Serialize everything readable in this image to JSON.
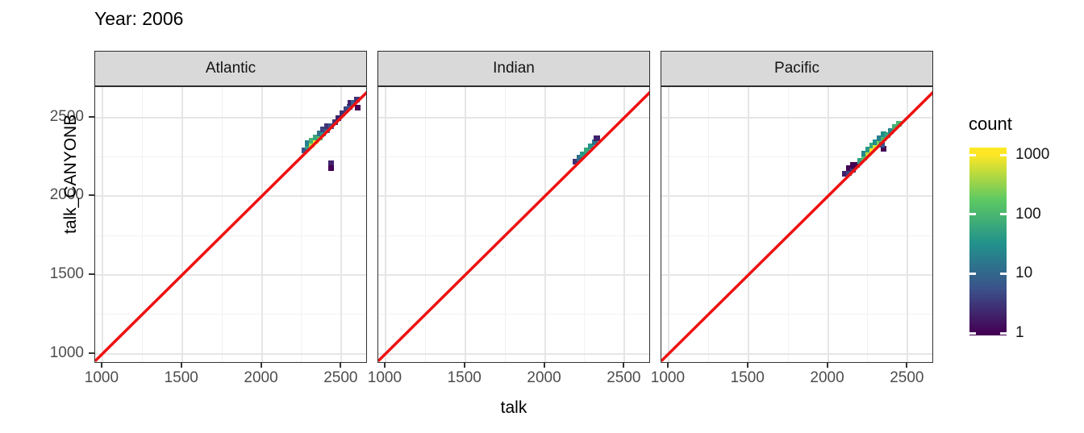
{
  "chart_data": {
    "type": "heatmap",
    "subtype": "bin2d-faceted-scatter",
    "title": "Year: 2006",
    "xlabel": "talk",
    "ylabel": "talk_CANYONB",
    "xlim": [
      955,
      2665
    ],
    "ylim": [
      938,
      2692
    ],
    "x_ticks": [
      1000,
      1500,
      2000,
      2500
    ],
    "y_ticks": [
      1000,
      1500,
      2000,
      2500
    ],
    "minor_gridlines": [
      1250,
      1750,
      2250
    ],
    "grid": true,
    "bin_size": 36,
    "facets": [
      {
        "label": "Atlantic",
        "bins": [
          [
            2268,
            2290,
            6
          ],
          [
            2290,
            2314,
            50
          ],
          [
            2290,
            2338,
            20
          ],
          [
            2314,
            2326,
            500
          ],
          [
            2314,
            2350,
            90
          ],
          [
            2338,
            2350,
            1000
          ],
          [
            2338,
            2374,
            60
          ],
          [
            2362,
            2372,
            150
          ],
          [
            2362,
            2398,
            12
          ],
          [
            2386,
            2396,
            35
          ],
          [
            2386,
            2422,
            4
          ],
          [
            2410,
            2420,
            12
          ],
          [
            2412,
            2446,
            3
          ],
          [
            2436,
            2446,
            6
          ],
          [
            2458,
            2470,
            3
          ],
          [
            2482,
            2494,
            2
          ],
          [
            2506,
            2528,
            3
          ],
          [
            2530,
            2552,
            4
          ],
          [
            2552,
            2566,
            6
          ],
          [
            2554,
            2592,
            2
          ],
          [
            2576,
            2590,
            8
          ],
          [
            2598,
            2614,
            3
          ],
          [
            2600,
            2560,
            1
          ],
          [
            2434,
            2210,
            2
          ],
          [
            2434,
            2176,
            1
          ]
        ]
      },
      {
        "label": "Indian",
        "bins": [
          [
            2192,
            2218,
            3
          ],
          [
            2216,
            2242,
            12
          ],
          [
            2240,
            2266,
            40
          ],
          [
            2264,
            2292,
            60
          ],
          [
            2288,
            2318,
            35
          ],
          [
            2312,
            2344,
            15
          ],
          [
            2326,
            2368,
            2
          ]
        ]
      },
      {
        "label": "Pacific",
        "bins": [
          [
            2108,
            2140,
            2
          ],
          [
            2132,
            2150,
            4
          ],
          [
            2132,
            2178,
            1
          ],
          [
            2156,
            2170,
            3
          ],
          [
            2156,
            2200,
            1
          ],
          [
            2180,
            2198,
            15
          ],
          [
            2204,
            2222,
            50
          ],
          [
            2228,
            2246,
            120
          ],
          [
            2228,
            2272,
            25
          ],
          [
            2252,
            2270,
            500
          ],
          [
            2252,
            2296,
            40
          ],
          [
            2276,
            2294,
            1000
          ],
          [
            2276,
            2320,
            60
          ],
          [
            2300,
            2318,
            700
          ],
          [
            2300,
            2344,
            30
          ],
          [
            2324,
            2342,
            250
          ],
          [
            2324,
            2368,
            20
          ],
          [
            2348,
            2366,
            100
          ],
          [
            2348,
            2392,
            30
          ],
          [
            2372,
            2390,
            60
          ],
          [
            2396,
            2414,
            25
          ],
          [
            2420,
            2438,
            80
          ],
          [
            2444,
            2458,
            100
          ],
          [
            2350,
            2302,
            1
          ],
          [
            2338,
            2324,
            6
          ],
          [
            2164,
            2196,
            1
          ]
        ]
      }
    ],
    "identity_line": {
      "equation": "y = x",
      "color": "#ee1111"
    },
    "legend": {
      "title": "count",
      "scale": "log10",
      "ticks": [
        1000,
        100,
        10,
        1
      ],
      "range": [
        1,
        1000
      ],
      "position": "right"
    },
    "color_scale": {
      "name": "viridis",
      "stops": [
        [
          0,
          "#440154"
        ],
        [
          0.25,
          "#3b528b"
        ],
        [
          0.5,
          "#21918c"
        ],
        [
          0.75,
          "#5ec962"
        ],
        [
          1,
          "#fde725"
        ]
      ]
    },
    "style_colors": {
      "strip_background": "#d9d9d9",
      "panel_border": "#333333",
      "grid_major": "#e6e6e6",
      "grid_minor": "#f2f2f2",
      "tick_mark": "#333333",
      "tick_label": "#4d4d4d"
    }
  }
}
